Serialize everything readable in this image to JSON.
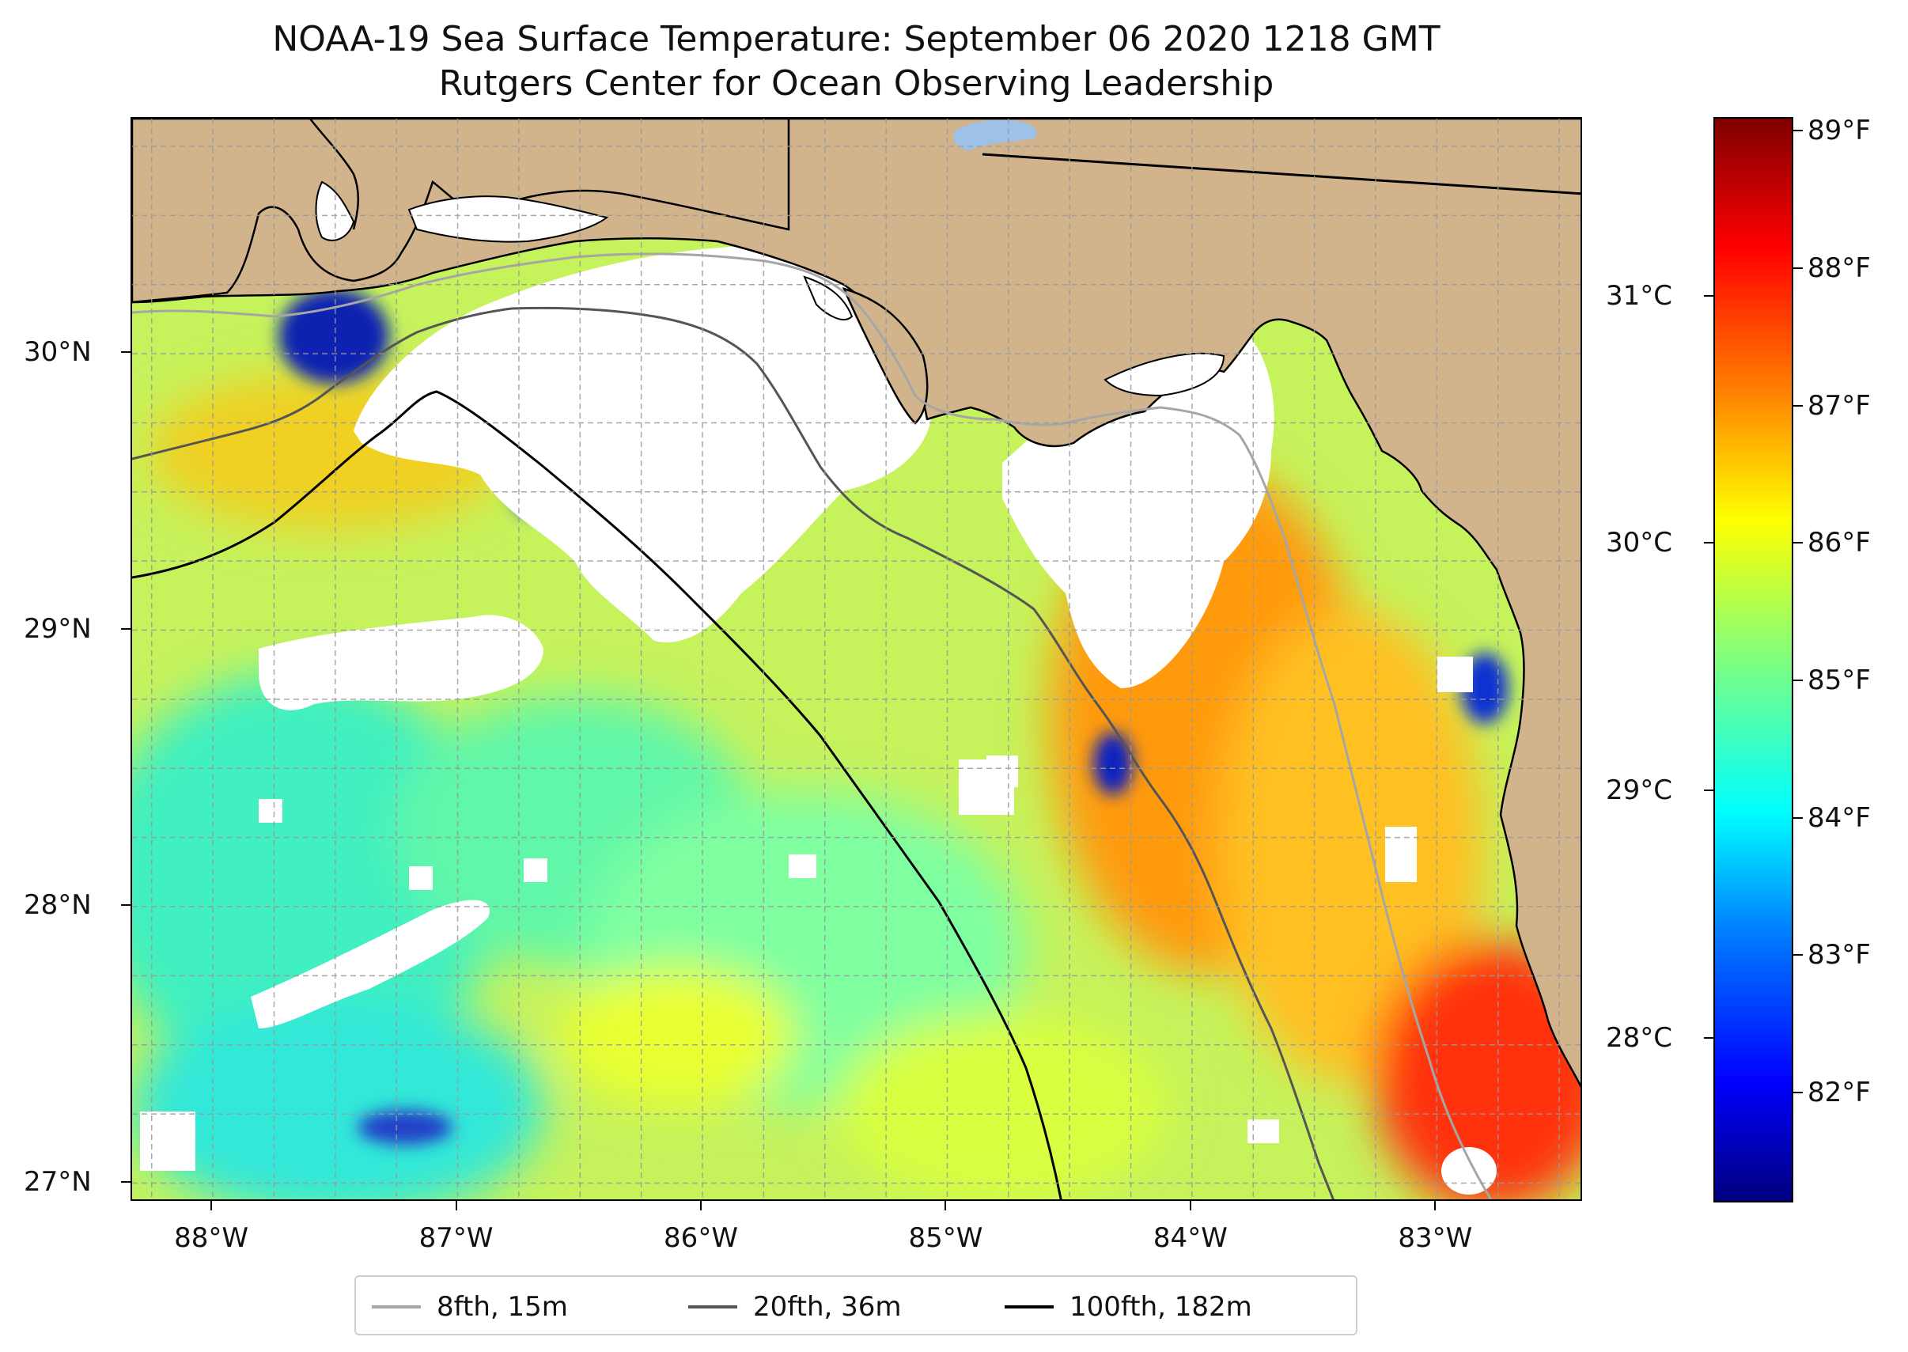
{
  "title": {
    "line1": "NOAA-19 Sea Surface Temperature: September 06 2020 1218 GMT",
    "line2": "Rutgers Center for Ocean Observing Leadership"
  },
  "map": {
    "extent": {
      "lon_min": -88.33,
      "lon_max": -82.4,
      "lat_min": 26.93,
      "lat_max": 30.85
    },
    "latitude_labels": [
      {
        "value": 30,
        "text": "30°N"
      },
      {
        "value": 29,
        "text": "29°N"
      },
      {
        "value": 28,
        "text": "28°N"
      },
      {
        "value": 27,
        "text": "27°N"
      }
    ],
    "longitude_labels": [
      {
        "value": -88,
        "text": "88°W"
      },
      {
        "value": -87,
        "text": "87°W"
      },
      {
        "value": -86,
        "text": "86°W"
      },
      {
        "value": -85,
        "text": "85°W"
      },
      {
        "value": -84,
        "text": "84°W"
      },
      {
        "value": -83,
        "text": "83°W"
      }
    ],
    "gridlines": "dashed",
    "colors": {
      "land": "#d2b48c",
      "cloud_mask": "#ffffff",
      "lake": "#9ec1e8",
      "warm_water": "#ff7f00",
      "hot_water": "#ff2000",
      "mid_water": "#e8ff30",
      "cool_water": "#60ffa0",
      "cold_water": "#00d8ff",
      "coldest_water": "#0020c0"
    }
  },
  "colorbar": {
    "colormap": "jet",
    "fahrenheit_range": [
      81.2,
      89.1
    ],
    "fahrenheit_labels": [
      {
        "value": 89,
        "text": "89°F"
      },
      {
        "value": 88,
        "text": "88°F"
      },
      {
        "value": 87,
        "text": "87°F"
      },
      {
        "value": 86,
        "text": "86°F"
      },
      {
        "value": 85,
        "text": "85°F"
      },
      {
        "value": 84,
        "text": "84°F"
      },
      {
        "value": 83,
        "text": "83°F"
      },
      {
        "value": 82,
        "text": "82°F"
      }
    ],
    "celsius_labels": [
      {
        "value": 31,
        "text": "31°C"
      },
      {
        "value": 30,
        "text": "30°C"
      },
      {
        "value": 29,
        "text": "29°C"
      },
      {
        "value": 28,
        "text": "28°C"
      }
    ]
  },
  "legend": {
    "items": [
      {
        "label": "8fth, 15m",
        "color": "#a6a6a6"
      },
      {
        "label": "20fth, 36m",
        "color": "#555555"
      },
      {
        "label": "100fth, 182m",
        "color": "#000000"
      }
    ]
  }
}
